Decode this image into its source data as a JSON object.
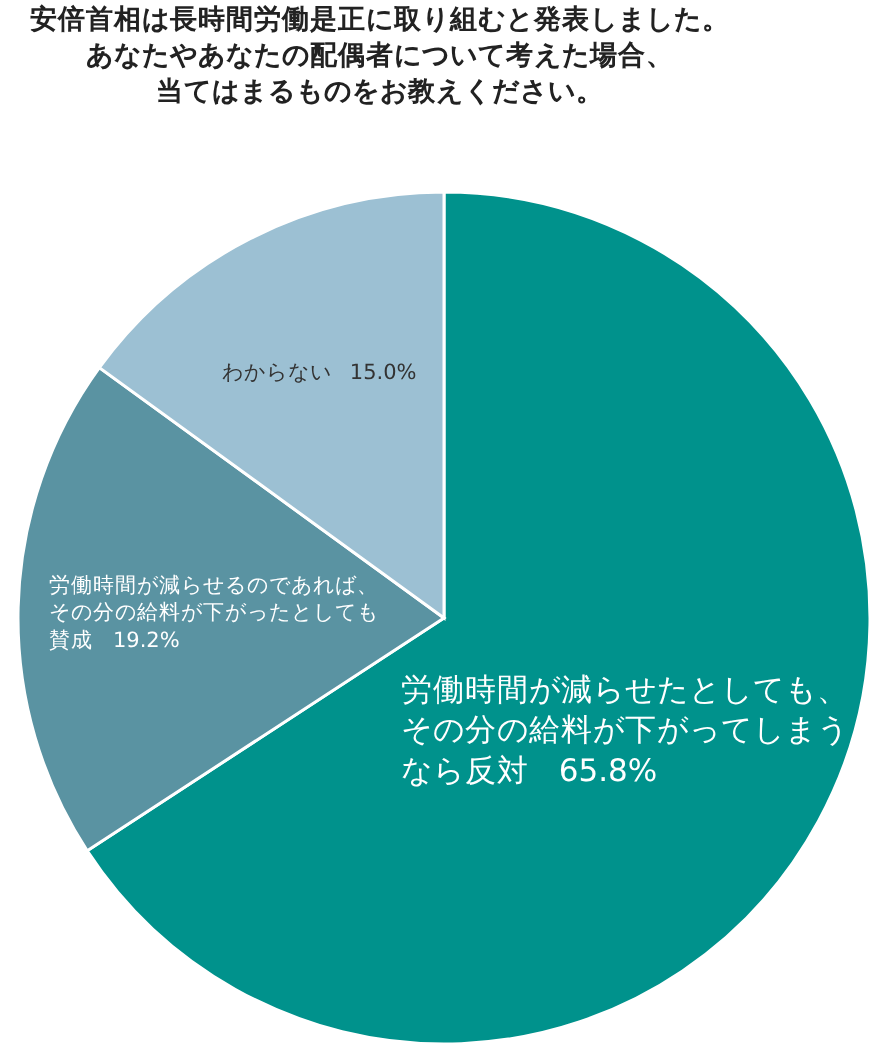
{
  "chart_data": {
    "type": "pie",
    "title": "安倍首相は長時間労働是正に取り組むと発表しました。",
    "subtitle": "あなたやあなたの配偶者について考えた場合、当てはまるものをお教えください。",
    "categories": [
      "労働時間が減らせたとしても、その分の給料が下がってしまうなら反対",
      "労働時間が減らせるのであれば、その分の給料が下がったとしても賛成",
      "わからない"
    ],
    "values": [
      65.8,
      19.2,
      15.0
    ],
    "colors": [
      "#00928c",
      "#5a93a2",
      "#9cc0d3"
    ],
    "value_labels": [
      "65.8%",
      "19.2%",
      "15.0%"
    ]
  }
}
